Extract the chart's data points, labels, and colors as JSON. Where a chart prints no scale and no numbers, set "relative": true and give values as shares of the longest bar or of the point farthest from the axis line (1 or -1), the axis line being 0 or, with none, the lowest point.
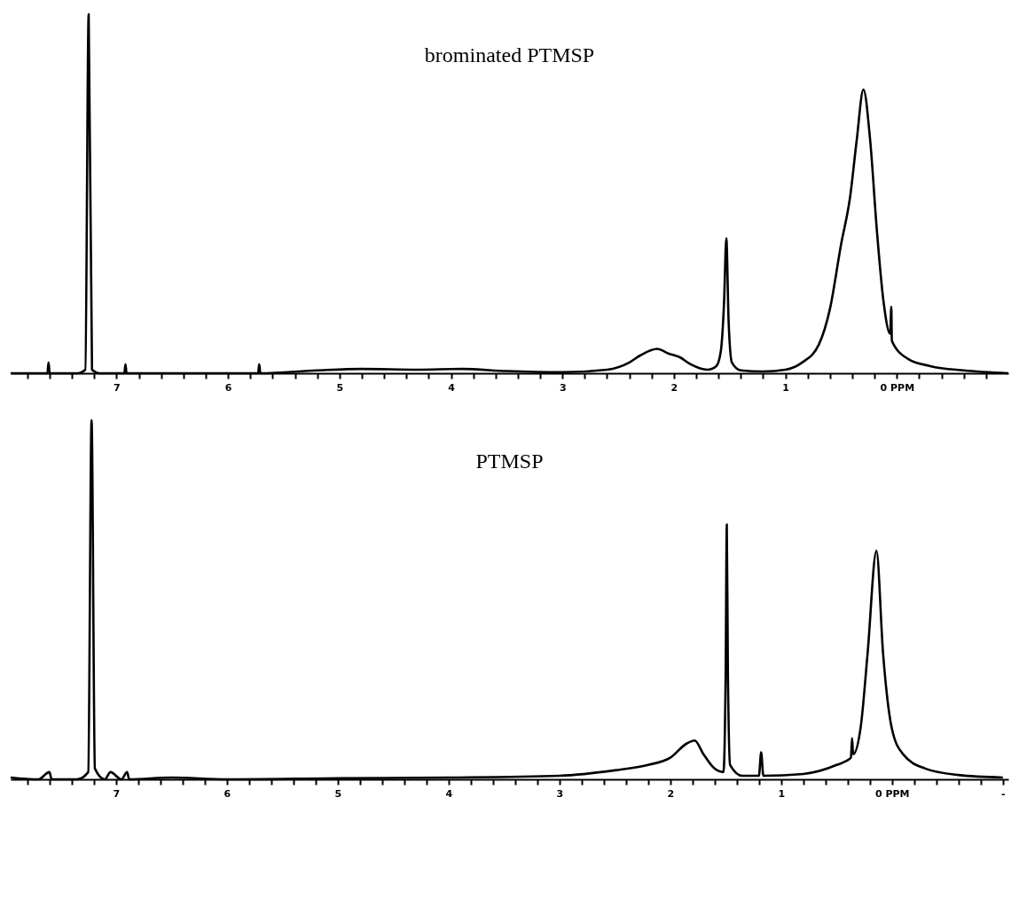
{
  "chart_data": [
    {
      "type": "line",
      "title": "brominated PTMSP",
      "relative": true,
      "xlim": [
        7.95,
        -1.0
      ],
      "xticks": [
        {
          "value": 7.8,
          "label": null
        },
        {
          "value": 7.6,
          "label": null
        },
        {
          "value": 7.4,
          "label": null
        },
        {
          "value": 7.2,
          "label": null
        },
        7,
        {
          "value": 6.8,
          "label": null
        },
        {
          "value": 6.6,
          "label": null
        },
        {
          "value": 6.4,
          "label": null
        },
        {
          "value": 6.2,
          "label": null
        },
        6,
        {
          "value": 5.8,
          "label": null
        },
        {
          "value": 5.6,
          "label": null
        },
        {
          "value": 5.4,
          "label": null
        },
        {
          "value": 5.2,
          "label": null
        },
        5,
        {
          "value": 4.8,
          "label": null
        },
        {
          "value": 4.6,
          "label": null
        },
        {
          "value": 4.4,
          "label": null
        },
        {
          "value": 4.2,
          "label": null
        },
        4,
        {
          "value": 3.8,
          "label": null
        },
        {
          "value": 3.6,
          "label": null
        },
        {
          "value": 3.4,
          "label": null
        },
        {
          "value": 3.2,
          "label": null
        },
        3,
        {
          "value": 2.8,
          "label": null
        },
        {
          "value": 2.6,
          "label": null
        },
        {
          "value": 2.4,
          "label": null
        },
        {
          "value": 2.2,
          "label": null
        },
        2,
        {
          "value": 1.8,
          "label": null
        },
        {
          "value": 1.6,
          "label": null
        },
        {
          "value": 1.4,
          "label": null
        },
        {
          "value": 1.2,
          "label": null
        },
        1,
        {
          "value": 0.8,
          "label": null
        },
        {
          "value": 0.6,
          "label": null
        },
        {
          "value": 0.4,
          "label": null
        },
        {
          "value": 0.2,
          "label": null
        },
        {
          "value": 0,
          "label": "0 PPM"
        },
        {
          "value": -0.2,
          "label": null
        },
        {
          "value": -0.4,
          "label": null
        },
        {
          "value": -0.6,
          "label": null
        },
        {
          "value": -0.8,
          "label": null
        }
      ],
      "series": [
        {
          "color": "#000000",
          "x": [
            7.95,
            7.62,
            7.61,
            7.6,
            7.35,
            7.28,
            7.25,
            7.22,
            7.15,
            6.93,
            6.92,
            6.91,
            5.73,
            5.72,
            5.71,
            5.2,
            4.8,
            4.3,
            3.9,
            3.5,
            3.0,
            2.6,
            2.4,
            2.3,
            2.15,
            2.05,
            1.95,
            1.85,
            1.7,
            1.62,
            1.58,
            1.55,
            1.53,
            1.51,
            1.48,
            1.4,
            1.2,
            1.0,
            0.85,
            0.7,
            0.6,
            0.5,
            0.42,
            0.36,
            0.3,
            0.24,
            0.18,
            0.12,
            0.06,
            0.05,
            0.045,
            -0.1,
            -0.3,
            -0.6,
            -1.0
          ],
          "values": [
            0,
            0,
            0.03,
            0,
            0,
            0.01,
            1,
            0.01,
            0,
            0,
            0.025,
            0,
            0,
            0.025,
            0,
            0.008,
            0.012,
            0.01,
            0.012,
            0.006,
            0.003,
            0.01,
            0.03,
            0.05,
            0.068,
            0.055,
            0.045,
            0.025,
            0.01,
            0.02,
            0.06,
            0.2,
            0.376,
            0.15,
            0.03,
            0.008,
            0.005,
            0.01,
            0.03,
            0.08,
            0.18,
            0.36,
            0.49,
            0.65,
            0.79,
            0.65,
            0.4,
            0.2,
            0.11,
            0.185,
            0.09,
            0.04,
            0.02,
            0.008,
            0
          ]
        }
      ]
    },
    {
      "type": "line",
      "title": "PTMSP",
      "relative": true,
      "xlim": [
        7.95,
        -1.05
      ],
      "xticks": [
        {
          "value": 7.8,
          "label": null
        },
        {
          "value": 7.6,
          "label": null
        },
        {
          "value": 7.4,
          "label": null
        },
        {
          "value": 7.2,
          "label": null
        },
        7,
        {
          "value": 6.8,
          "label": null
        },
        {
          "value": 6.6,
          "label": null
        },
        {
          "value": 6.4,
          "label": null
        },
        {
          "value": 6.2,
          "label": null
        },
        6,
        {
          "value": 5.8,
          "label": null
        },
        {
          "value": 5.6,
          "label": null
        },
        {
          "value": 5.4,
          "label": null
        },
        {
          "value": 5.2,
          "label": null
        },
        5,
        {
          "value": 4.8,
          "label": null
        },
        {
          "value": 4.6,
          "label": null
        },
        {
          "value": 4.4,
          "label": null
        },
        {
          "value": 4.2,
          "label": null
        },
        4,
        {
          "value": 3.8,
          "label": null
        },
        {
          "value": 3.6,
          "label": null
        },
        {
          "value": 3.4,
          "label": null
        },
        {
          "value": 3.2,
          "label": null
        },
        3,
        {
          "value": 2.8,
          "label": null
        },
        {
          "value": 2.6,
          "label": null
        },
        {
          "value": 2.4,
          "label": null
        },
        {
          "value": 2.2,
          "label": null
        },
        2,
        {
          "value": 1.8,
          "label": null
        },
        {
          "value": 1.6,
          "label": null
        },
        {
          "value": 1.4,
          "label": null
        },
        {
          "value": 1.2,
          "label": null
        },
        1,
        {
          "value": 0.8,
          "label": null
        },
        {
          "value": 0.6,
          "label": null
        },
        {
          "value": 0.4,
          "label": null
        },
        {
          "value": 0.2,
          "label": null
        },
        {
          "value": 0,
          "label": "0 PPM"
        },
        {
          "value": -0.2,
          "label": null
        },
        {
          "value": -0.4,
          "label": null
        },
        {
          "value": -0.6,
          "label": null
        },
        {
          "value": -0.8,
          "label": null
        },
        {
          "value": -1,
          "label": "-"
        }
      ],
      "series": [
        {
          "color": "#000000",
          "x": [
            7.95,
            7.7,
            7.6,
            7.58,
            7.35,
            7.25,
            7.22,
            7.19,
            7.1,
            7.05,
            6.95,
            6.9,
            6.88,
            6.5,
            6.0,
            5.0,
            4.0,
            3.0,
            2.5,
            2.2,
            2.0,
            1.85,
            1.78,
            1.7,
            1.6,
            1.52,
            1.5,
            1.49,
            1.48,
            1.46,
            1.35,
            1.2,
            1.18,
            1.16,
            0.8,
            0.5,
            0.37,
            0.36,
            0.35,
            0.28,
            0.22,
            0.14,
            0.08,
            0.0,
            -0.1,
            -0.3,
            -0.6,
            -1.0
          ],
          "values": [
            0.005,
            0,
            0.02,
            0,
            0,
            0.02,
            1,
            0.03,
            0,
            0.02,
            0,
            0.02,
            0,
            0.005,
            0,
            0.003,
            0.005,
            0.01,
            0.025,
            0.04,
            0.06,
            0.1,
            0.108,
            0.07,
            0.03,
            0.02,
            0.3,
            0.71,
            0.3,
            0.04,
            0.01,
            0.01,
            0.075,
            0.01,
            0.015,
            0.04,
            0.06,
            0.115,
            0.07,
            0.15,
            0.35,
            0.636,
            0.35,
            0.14,
            0.07,
            0.03,
            0.012,
            0.005
          ]
        }
      ]
    }
  ]
}
